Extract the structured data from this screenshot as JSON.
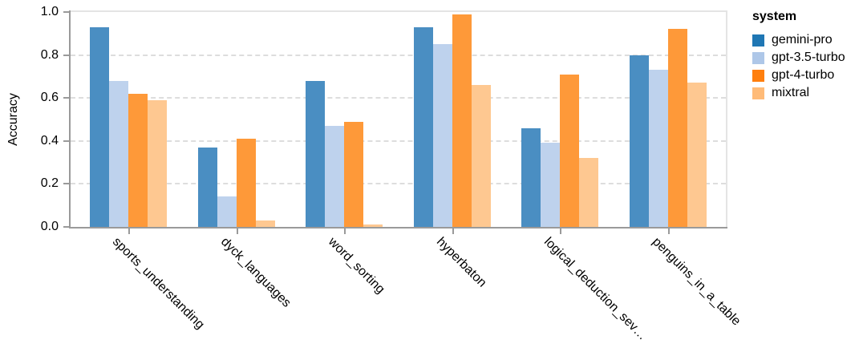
{
  "chart_data": {
    "type": "bar",
    "title": "",
    "xlabel": "",
    "ylabel": "Accuracy",
    "ylim": [
      0,
      1
    ],
    "y_ticks": [
      "0.0",
      "0.2",
      "0.4",
      "0.6",
      "0.8",
      "1.0"
    ],
    "grid": "horizontal-dashed",
    "legend": {
      "title": "system",
      "position": "top-right"
    },
    "categories": [
      "sports_understanding",
      "dyck_languages",
      "word_sorting",
      "hyperbaton",
      "logical_deduction_sev…",
      "penguins_in_a_table"
    ],
    "series": [
      {
        "name": "gemini-pro",
        "color": "#4a8ec2",
        "legend_color": "#1f77b4",
        "values": [
          0.93,
          0.37,
          0.68,
          0.93,
          0.46,
          0.8
        ]
      },
      {
        "name": "gpt-3.5-turbo",
        "color": "#bed2ed",
        "legend_color": "#aec7e8",
        "values": [
          0.68,
          0.14,
          0.47,
          0.85,
          0.39,
          0.73
        ]
      },
      {
        "name": "gpt-4-turbo",
        "color": "#fe9939",
        "legend_color": "#ff7f0e",
        "values": [
          0.62,
          0.41,
          0.49,
          0.99,
          0.71,
          0.92
        ]
      },
      {
        "name": "mixtral",
        "color": "#fec891",
        "legend_color": "#ffbb78",
        "values": [
          0.59,
          0.03,
          0.01,
          0.66,
          0.32,
          0.67
        ]
      }
    ],
    "axis_colors": {
      "domain": "#9a9a9a",
      "grid": "#dddddd",
      "plot_border": "#e4e4e4",
      "label": "#000000"
    }
  }
}
